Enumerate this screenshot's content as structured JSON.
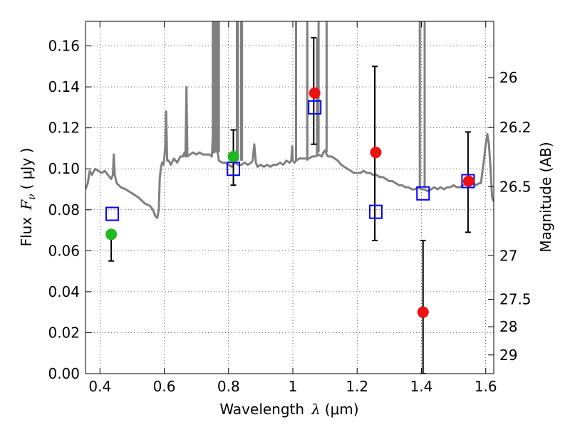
{
  "chart_data": {
    "type": "scatter",
    "title": "",
    "xlabel": "Wavelength",
    "xlabel_symbol": "λ",
    "xlabel_unit": "(μm)",
    "ylabel": "Flux",
    "ylabel_symbol": "F",
    "ylabel_sub": "ν",
    "ylabel_unit": "( μJy )",
    "y2label": "Magnitude (AB)",
    "xlim": [
      0.355,
      1.625
    ],
    "ylim": [
      0.0,
      0.172
    ],
    "grid": true,
    "x_ticks": [
      0.4,
      0.6,
      0.8,
      1.0,
      1.2,
      1.4,
      1.6
    ],
    "x_tick_labels": [
      "0.4",
      "0.6",
      "0.8",
      "1",
      "1.2",
      "1.4",
      "1.6"
    ],
    "y_ticks": [
      0.0,
      0.02,
      0.04,
      0.06,
      0.08,
      0.1,
      0.12,
      0.14,
      0.16
    ],
    "y_tick_labels": [
      "0.00",
      "0.02",
      "0.04",
      "0.06",
      "0.08",
      "0.10",
      "0.12",
      "0.14",
      "0.16"
    ],
    "y2_ticks": [
      {
        "label": "26",
        "value": 26.0
      },
      {
        "label": "26.2",
        "value": 26.2
      },
      {
        "label": "26.5",
        "value": 26.5
      },
      {
        "label": "27",
        "value": 27.0
      },
      {
        "label": "27.5",
        "value": 27.5
      },
      {
        "label": "28",
        "value": 28.0
      },
      {
        "label": "29",
        "value": 29.0
      }
    ],
    "series": [
      {
        "kind": "line",
        "color": "#808080",
        "points": [
          [
            0.355,
            0.09
          ],
          [
            0.362,
            0.093
          ],
          [
            0.368,
            0.099
          ],
          [
            0.375,
            0.097
          ],
          [
            0.385,
            0.1
          ],
          [
            0.395,
            0.099
          ],
          [
            0.405,
            0.098
          ],
          [
            0.415,
            0.099
          ],
          [
            0.425,
            0.097
          ],
          [
            0.435,
            0.095
          ],
          [
            0.44,
            0.097
          ],
          [
            0.443,
            0.107
          ],
          [
            0.446,
            0.097
          ],
          [
            0.452,
            0.093
          ],
          [
            0.465,
            0.091
          ],
          [
            0.48,
            0.09
          ],
          [
            0.5,
            0.088
          ],
          [
            0.52,
            0.086
          ],
          [
            0.54,
            0.083
          ],
          [
            0.555,
            0.082
          ],
          [
            0.565,
            0.08
          ],
          [
            0.572,
            0.077
          ],
          [
            0.578,
            0.076
          ],
          [
            0.583,
            0.08
          ],
          [
            0.586,
            0.095
          ],
          [
            0.589,
            0.1
          ],
          [
            0.593,
            0.103
          ],
          [
            0.598,
            0.102
          ],
          [
            0.603,
            0.11
          ],
          [
            0.606,
            0.128
          ],
          [
            0.609,
            0.104
          ],
          [
            0.614,
            0.104
          ],
          [
            0.62,
            0.102
          ],
          [
            0.63,
            0.105
          ],
          [
            0.64,
            0.103
          ],
          [
            0.65,
            0.106
          ],
          [
            0.658,
            0.106
          ],
          [
            0.663,
            0.108
          ],
          [
            0.666,
            0.106
          ],
          [
            0.669,
            0.14
          ],
          [
            0.672,
            0.106
          ],
          [
            0.68,
            0.107
          ],
          [
            0.69,
            0.108
          ],
          [
            0.7,
            0.107
          ],
          [
            0.71,
            0.108
          ],
          [
            0.72,
            0.107
          ],
          [
            0.73,
            0.107
          ],
          [
            0.74,
            0.107
          ],
          [
            0.748,
            0.106
          ],
          [
            0.752,
            0.119
          ],
          [
            0.755,
            0.108
          ],
          [
            0.759,
            0.155
          ],
          [
            0.762,
            0.11
          ],
          [
            0.766,
            0.108
          ],
          [
            0.77,
            0.104
          ],
          [
            0.78,
            0.103
          ],
          [
            0.79,
            0.103
          ],
          [
            0.8,
            0.102
          ],
          [
            0.81,
            0.101
          ],
          [
            0.82,
            0.103
          ],
          [
            0.83,
            0.102
          ],
          [
            0.84,
            0.102
          ],
          [
            0.85,
            0.103
          ],
          [
            0.86,
            0.102
          ],
          [
            0.87,
            0.103
          ],
          [
            0.875,
            0.104
          ],
          [
            0.88,
            0.112
          ],
          [
            0.885,
            0.103
          ],
          [
            0.89,
            0.101
          ],
          [
            0.9,
            0.102
          ],
          [
            0.91,
            0.101
          ],
          [
            0.92,
            0.102
          ],
          [
            0.93,
            0.101
          ],
          [
            0.94,
            0.102
          ],
          [
            0.95,
            0.102
          ],
          [
            0.96,
            0.103
          ],
          [
            0.97,
            0.102
          ],
          [
            0.98,
            0.104
          ],
          [
            0.99,
            0.103
          ],
          [
            0.995,
            0.104
          ],
          [
            0.998,
            0.111
          ],
          [
            1.0,
            0.104
          ],
          [
            1.005,
            0.103
          ],
          [
            1.01,
            0.104
          ],
          [
            1.02,
            0.105
          ],
          [
            1.03,
            0.105
          ],
          [
            1.04,
            0.105
          ],
          [
            1.05,
            0.105
          ],
          [
            1.06,
            0.106
          ],
          [
            1.07,
            0.106
          ],
          [
            1.08,
            0.107
          ],
          [
            1.09,
            0.106
          ],
          [
            1.095,
            0.108
          ],
          [
            1.1,
            0.109
          ],
          [
            1.105,
            0.107
          ],
          [
            1.11,
            0.106
          ],
          [
            1.12,
            0.106
          ],
          [
            1.13,
            0.105
          ],
          [
            1.14,
            0.104
          ],
          [
            1.15,
            0.102
          ],
          [
            1.16,
            0.101
          ],
          [
            1.17,
            0.1
          ],
          [
            1.18,
            0.099
          ],
          [
            1.19,
            0.098
          ],
          [
            1.2,
            0.098
          ],
          [
            1.21,
            0.098
          ],
          [
            1.22,
            0.099
          ],
          [
            1.23,
            0.098
          ],
          [
            1.24,
            0.098
          ],
          [
            1.25,
            0.097
          ],
          [
            1.26,
            0.097
          ],
          [
            1.27,
            0.096
          ],
          [
            1.28,
            0.096
          ],
          [
            1.29,
            0.095
          ],
          [
            1.3,
            0.094
          ],
          [
            1.31,
            0.094
          ],
          [
            1.32,
            0.093
          ],
          [
            1.33,
            0.092
          ],
          [
            1.34,
            0.092
          ],
          [
            1.35,
            0.091
          ],
          [
            1.36,
            0.091
          ],
          [
            1.37,
            0.09
          ],
          [
            1.38,
            0.09
          ],
          [
            1.39,
            0.091
          ],
          [
            1.4,
            0.09
          ],
          [
            1.41,
            0.09
          ],
          [
            1.42,
            0.089
          ],
          [
            1.43,
            0.09
          ],
          [
            1.44,
            0.091
          ],
          [
            1.45,
            0.09
          ],
          [
            1.46,
            0.091
          ],
          [
            1.47,
            0.09
          ],
          [
            1.48,
            0.091
          ],
          [
            1.49,
            0.091
          ],
          [
            1.5,
            0.092
          ],
          [
            1.51,
            0.091
          ],
          [
            1.52,
            0.091
          ],
          [
            1.53,
            0.092
          ],
          [
            1.54,
            0.093
          ],
          [
            1.55,
            0.092
          ],
          [
            1.56,
            0.093
          ],
          [
            1.57,
            0.092
          ],
          [
            1.58,
            0.093
          ],
          [
            1.585,
            0.093
          ],
          [
            1.59,
            0.099
          ],
          [
            1.595,
            0.105
          ],
          [
            1.6,
            0.112
          ],
          [
            1.605,
            0.117
          ],
          [
            1.61,
            0.112
          ],
          [
            1.615,
            0.1
          ],
          [
            1.62,
            0.086
          ],
          [
            1.625,
            0.084
          ]
        ],
        "spikes": [
          {
            "x0": 0.751,
            "x1": 0.762,
            "base": 0.108,
            "top": 0.172,
            "offsets": [
              0.0,
              0.004,
              0.008
            ]
          },
          {
            "x0": 0.826,
            "x1": 0.839,
            "base": 0.104,
            "top": 0.172,
            "offsets": [
              0.0,
              0.003
            ]
          },
          {
            "x0": 1.01,
            "x1": 1.045,
            "base": 0.104,
            "top": 0.172,
            "offsets": [
              0.0
            ]
          },
          {
            "x0": 1.045,
            "x1": 1.075,
            "base": 0.106,
            "top": 0.164,
            "offsets": [
              0.0
            ]
          },
          {
            "x0": 1.08,
            "x1": 1.105,
            "base": 0.108,
            "top": 0.172,
            "offsets": [
              0.0
            ]
          },
          {
            "x0": 1.395,
            "x1": 1.41,
            "base": 0.091,
            "top": 0.172,
            "offsets": [
              0.0
            ]
          }
        ]
      },
      {
        "kind": "errorbar",
        "color": "#000000",
        "bars": [
          {
            "x": 0.435,
            "low": 0.055,
            "high": 0.068
          },
          {
            "x": 0.815,
            "low": 0.092,
            "high": 0.119
          },
          {
            "x": 1.065,
            "low": 0.112,
            "high": 0.164
          },
          {
            "x": 1.255,
            "low": 0.065,
            "high": 0.15
          },
          {
            "x": 1.405,
            "low": 0.0,
            "high": 0.065
          },
          {
            "x": 1.545,
            "low": 0.069,
            "high": 0.118
          }
        ]
      },
      {
        "kind": "markers",
        "marker": "square-open",
        "color": "#0000ff",
        "points": [
          {
            "x": 0.438,
            "y": 0.078
          },
          {
            "x": 0.815,
            "y": 0.1
          },
          {
            "x": 1.068,
            "y": 0.13
          },
          {
            "x": 1.258,
            "y": 0.079
          },
          {
            "x": 1.405,
            "y": 0.088
          },
          {
            "x": 1.545,
            "y": 0.094
          }
        ]
      },
      {
        "kind": "markers",
        "marker": "circle",
        "color": "#1fb81f",
        "points": [
          {
            "x": 0.435,
            "y": 0.068
          },
          {
            "x": 0.815,
            "y": 0.106
          }
        ]
      },
      {
        "kind": "markers",
        "marker": "circle",
        "color": "#ee1111",
        "points": [
          {
            "x": 1.068,
            "y": 0.137
          },
          {
            "x": 1.258,
            "y": 0.108
          },
          {
            "x": 1.405,
            "y": 0.03
          },
          {
            "x": 1.547,
            "y": 0.094
          }
        ]
      }
    ]
  }
}
